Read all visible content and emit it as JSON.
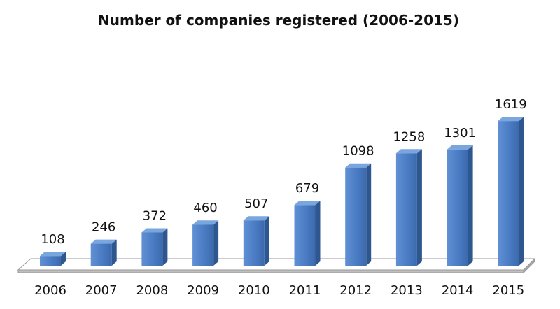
{
  "chart_data": {
    "type": "bar",
    "title": "Number of companies registered (2006-2015)",
    "xlabel": "",
    "ylabel": "",
    "categories": [
      "2006",
      "2007",
      "2008",
      "2009",
      "2010",
      "2011",
      "2012",
      "2013",
      "2014",
      "2015"
    ],
    "values": [
      108,
      246,
      372,
      460,
      507,
      679,
      1098,
      1258,
      1301,
      1619
    ],
    "ylim": [
      0,
      1800
    ],
    "grid": false,
    "legend": "none",
    "bar_color": "#4a7cc4"
  }
}
